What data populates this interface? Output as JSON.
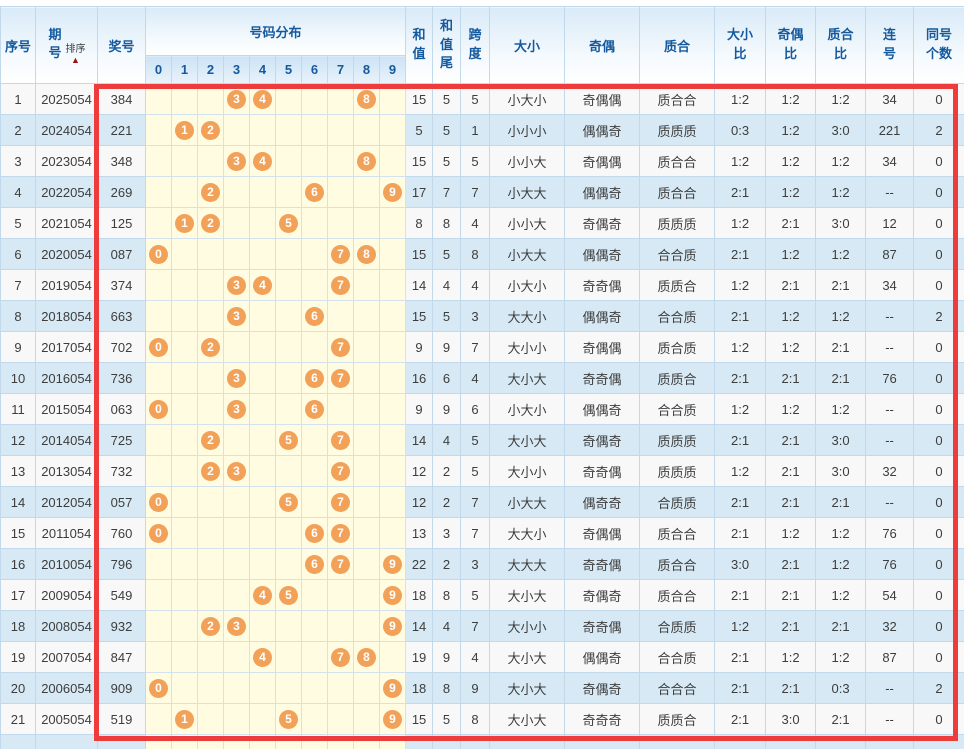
{
  "table": {
    "headers": {
      "seq": "序号",
      "period": "期号",
      "sort": "排序",
      "sort_arrow": "▲",
      "award": "奖号",
      "distribution": "号码分布",
      "digits": [
        "0",
        "1",
        "2",
        "3",
        "4",
        "5",
        "6",
        "7",
        "8",
        "9"
      ],
      "sum": "和值",
      "sum_tail": "和值尾",
      "span": "跨度",
      "size": "大小",
      "parity": "奇偶",
      "prime": "质合",
      "size_ratio": "大小比",
      "parity_ratio": "奇偶比",
      "prime_ratio": "质合比",
      "consecutive": "连号",
      "same_count": "同号个数"
    },
    "rows": [
      {
        "seq": "1",
        "period": "2025054",
        "award": "384",
        "balls": [
          3,
          4,
          8
        ],
        "sum": "15",
        "tail": "5",
        "span": "5",
        "size": "小大小",
        "parity": "奇偶偶",
        "prime": "质合合",
        "size_ratio": "1:2",
        "parity_ratio": "1:2",
        "prime_ratio": "1:2",
        "consecutive": "34",
        "same_count": "0"
      },
      {
        "seq": "2",
        "period": "2024054",
        "award": "221",
        "balls": [
          1,
          2
        ],
        "sum": "5",
        "tail": "5",
        "span": "1",
        "size": "小小小",
        "parity": "偶偶奇",
        "prime": "质质质",
        "size_ratio": "0:3",
        "parity_ratio": "1:2",
        "prime_ratio": "3:0",
        "consecutive": "221",
        "same_count": "2"
      },
      {
        "seq": "3",
        "period": "2023054",
        "award": "348",
        "balls": [
          3,
          4,
          8
        ],
        "sum": "15",
        "tail": "5",
        "span": "5",
        "size": "小小大",
        "parity": "奇偶偶",
        "prime": "质合合",
        "size_ratio": "1:2",
        "parity_ratio": "1:2",
        "prime_ratio": "1:2",
        "consecutive": "34",
        "same_count": "0"
      },
      {
        "seq": "4",
        "period": "2022054",
        "award": "269",
        "balls": [
          2,
          6,
          9
        ],
        "sum": "17",
        "tail": "7",
        "span": "7",
        "size": "小大大",
        "parity": "偶偶奇",
        "prime": "质合合",
        "size_ratio": "2:1",
        "parity_ratio": "1:2",
        "prime_ratio": "1:2",
        "consecutive": "--",
        "same_count": "0"
      },
      {
        "seq": "5",
        "period": "2021054",
        "award": "125",
        "balls": [
          1,
          2,
          5
        ],
        "sum": "8",
        "tail": "8",
        "span": "4",
        "size": "小小大",
        "parity": "奇偶奇",
        "prime": "质质质",
        "size_ratio": "1:2",
        "parity_ratio": "2:1",
        "prime_ratio": "3:0",
        "consecutive": "12",
        "same_count": "0"
      },
      {
        "seq": "6",
        "period": "2020054",
        "award": "087",
        "balls": [
          0,
          7,
          8
        ],
        "sum": "15",
        "tail": "5",
        "span": "8",
        "size": "小大大",
        "parity": "偶偶奇",
        "prime": "合合质",
        "size_ratio": "2:1",
        "parity_ratio": "1:2",
        "prime_ratio": "1:2",
        "consecutive": "87",
        "same_count": "0"
      },
      {
        "seq": "7",
        "period": "2019054",
        "award": "374",
        "balls": [
          3,
          4,
          7
        ],
        "sum": "14",
        "tail": "4",
        "span": "4",
        "size": "小大小",
        "parity": "奇奇偶",
        "prime": "质质合",
        "size_ratio": "1:2",
        "parity_ratio": "2:1",
        "prime_ratio": "2:1",
        "consecutive": "34",
        "same_count": "0"
      },
      {
        "seq": "8",
        "period": "2018054",
        "award": "663",
        "balls": [
          3,
          6
        ],
        "sum": "15",
        "tail": "5",
        "span": "3",
        "size": "大大小",
        "parity": "偶偶奇",
        "prime": "合合质",
        "size_ratio": "2:1",
        "parity_ratio": "1:2",
        "prime_ratio": "1:2",
        "consecutive": "--",
        "same_count": "2"
      },
      {
        "seq": "9",
        "period": "2017054",
        "award": "702",
        "balls": [
          0,
          2,
          7
        ],
        "sum": "9",
        "tail": "9",
        "span": "7",
        "size": "大小小",
        "parity": "奇偶偶",
        "prime": "质合质",
        "size_ratio": "1:2",
        "parity_ratio": "1:2",
        "prime_ratio": "2:1",
        "consecutive": "--",
        "same_count": "0"
      },
      {
        "seq": "10",
        "period": "2016054",
        "award": "736",
        "balls": [
          3,
          6,
          7
        ],
        "sum": "16",
        "tail": "6",
        "span": "4",
        "size": "大小大",
        "parity": "奇奇偶",
        "prime": "质质合",
        "size_ratio": "2:1",
        "parity_ratio": "2:1",
        "prime_ratio": "2:1",
        "consecutive": "76",
        "same_count": "0"
      },
      {
        "seq": "11",
        "period": "2015054",
        "award": "063",
        "balls": [
          0,
          3,
          6
        ],
        "sum": "9",
        "tail": "9",
        "span": "6",
        "size": "小大小",
        "parity": "偶偶奇",
        "prime": "合合质",
        "size_ratio": "1:2",
        "parity_ratio": "1:2",
        "prime_ratio": "1:2",
        "consecutive": "--",
        "same_count": "0"
      },
      {
        "seq": "12",
        "period": "2014054",
        "award": "725",
        "balls": [
          2,
          5,
          7
        ],
        "sum": "14",
        "tail": "4",
        "span": "5",
        "size": "大小大",
        "parity": "奇偶奇",
        "prime": "质质质",
        "size_ratio": "2:1",
        "parity_ratio": "2:1",
        "prime_ratio": "3:0",
        "consecutive": "--",
        "same_count": "0"
      },
      {
        "seq": "13",
        "period": "2013054",
        "award": "732",
        "balls": [
          2,
          3,
          7
        ],
        "sum": "12",
        "tail": "2",
        "span": "5",
        "size": "大小小",
        "parity": "奇奇偶",
        "prime": "质质质",
        "size_ratio": "1:2",
        "parity_ratio": "2:1",
        "prime_ratio": "3:0",
        "consecutive": "32",
        "same_count": "0"
      },
      {
        "seq": "14",
        "period": "2012054",
        "award": "057",
        "balls": [
          0,
          5,
          7
        ],
        "sum": "12",
        "tail": "2",
        "span": "7",
        "size": "小大大",
        "parity": "偶奇奇",
        "prime": "合质质",
        "size_ratio": "2:1",
        "parity_ratio": "2:1",
        "prime_ratio": "2:1",
        "consecutive": "--",
        "same_count": "0"
      },
      {
        "seq": "15",
        "period": "2011054",
        "award": "760",
        "balls": [
          0,
          6,
          7
        ],
        "sum": "13",
        "tail": "3",
        "span": "7",
        "size": "大大小",
        "parity": "奇偶偶",
        "prime": "质合合",
        "size_ratio": "2:1",
        "parity_ratio": "1:2",
        "prime_ratio": "1:2",
        "consecutive": "76",
        "same_count": "0"
      },
      {
        "seq": "16",
        "period": "2010054",
        "award": "796",
        "balls": [
          6,
          7,
          9
        ],
        "sum": "22",
        "tail": "2",
        "span": "3",
        "size": "大大大",
        "parity": "奇奇偶",
        "prime": "质合合",
        "size_ratio": "3:0",
        "parity_ratio": "2:1",
        "prime_ratio": "1:2",
        "consecutive": "76",
        "same_count": "0"
      },
      {
        "seq": "17",
        "period": "2009054",
        "award": "549",
        "balls": [
          4,
          5,
          9
        ],
        "sum": "18",
        "tail": "8",
        "span": "5",
        "size": "大小大",
        "parity": "奇偶奇",
        "prime": "质合合",
        "size_ratio": "2:1",
        "parity_ratio": "2:1",
        "prime_ratio": "1:2",
        "consecutive": "54",
        "same_count": "0"
      },
      {
        "seq": "18",
        "period": "2008054",
        "award": "932",
        "balls": [
          2,
          3,
          9
        ],
        "sum": "14",
        "tail": "4",
        "span": "7",
        "size": "大小小",
        "parity": "奇奇偶",
        "prime": "合质质",
        "size_ratio": "1:2",
        "parity_ratio": "2:1",
        "prime_ratio": "2:1",
        "consecutive": "32",
        "same_count": "0"
      },
      {
        "seq": "19",
        "period": "2007054",
        "award": "847",
        "balls": [
          4,
          7,
          8
        ],
        "sum": "19",
        "tail": "9",
        "span": "4",
        "size": "大小大",
        "parity": "偶偶奇",
        "prime": "合合质",
        "size_ratio": "2:1",
        "parity_ratio": "1:2",
        "prime_ratio": "1:2",
        "consecutive": "87",
        "same_count": "0"
      },
      {
        "seq": "20",
        "period": "2006054",
        "award": "909",
        "balls": [
          0,
          9
        ],
        "sum": "18",
        "tail": "8",
        "span": "9",
        "size": "大小大",
        "parity": "奇偶奇",
        "prime": "合合合",
        "size_ratio": "2:1",
        "parity_ratio": "2:1",
        "prime_ratio": "0:3",
        "consecutive": "--",
        "same_count": "2"
      },
      {
        "seq": "21",
        "period": "2005054",
        "award": "519",
        "balls": [
          1,
          5,
          9
        ],
        "sum": "15",
        "tail": "5",
        "span": "8",
        "size": "大小大",
        "parity": "奇奇奇",
        "prime": "质质合",
        "size_ratio": "2:1",
        "parity_ratio": "3:0",
        "prime_ratio": "2:1",
        "consecutive": "--",
        "same_count": "0"
      }
    ]
  },
  "colors": {
    "header_text": "#155a9e",
    "ball_fill": "#f2a159",
    "ball_area_bg": "#fffce2",
    "row_alt_bg": "#d7e9f4",
    "highlight_border": "#ee3b3b",
    "sort_arrow": "#9c1212"
  }
}
